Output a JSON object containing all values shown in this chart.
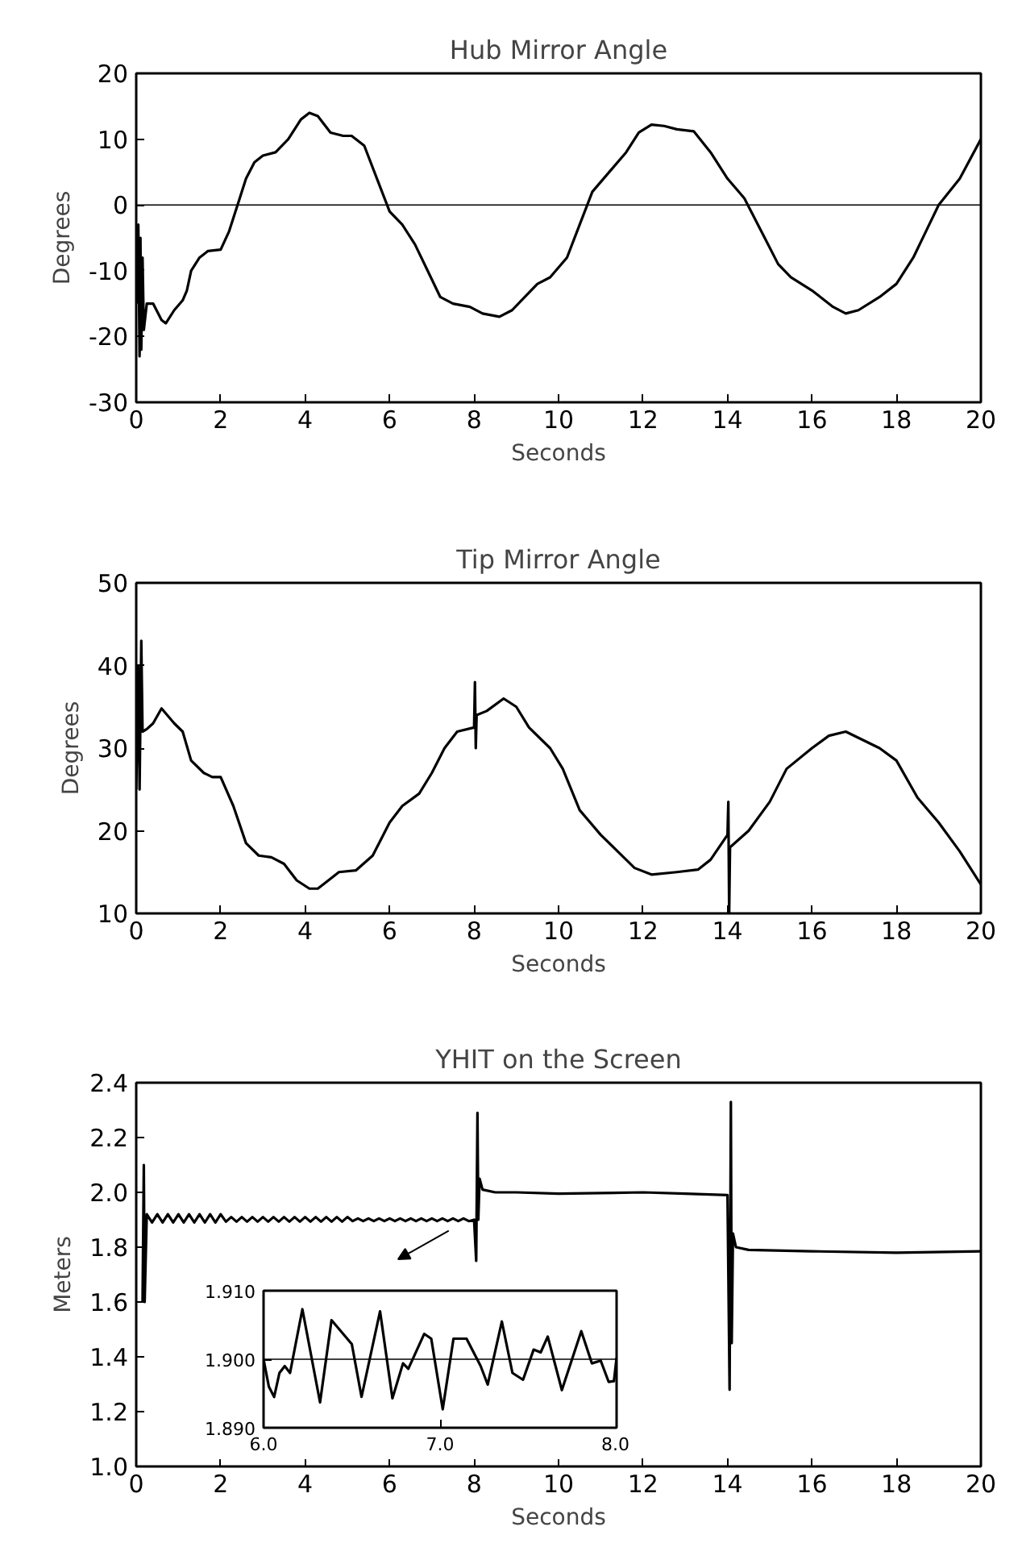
{
  "chart_data": [
    {
      "type": "line",
      "title": "Hub Mirror Angle",
      "xlabel": "Seconds",
      "ylabel": "Degrees",
      "xlim": [
        0,
        20
      ],
      "ylim": [
        -30,
        20
      ],
      "xticks": [
        0,
        2,
        4,
        6,
        8,
        10,
        12,
        14,
        16,
        18,
        20
      ],
      "yticks": [
        -30,
        -20,
        -10,
        0,
        10,
        20
      ],
      "grid": false,
      "ref_lines": [
        {
          "axis": "y",
          "value": 0,
          "color": "#000000"
        }
      ],
      "series": [
        {
          "color": "#000000",
          "x": [
            0.02,
            0.05,
            0.08,
            0.1,
            0.12,
            0.15,
            0.18,
            0.25,
            0.4,
            0.6,
            0.7,
            0.9,
            1.1,
            1.2,
            1.3,
            1.5,
            1.7,
            2.0,
            2.2,
            2.4,
            2.6,
            2.8,
            3.0,
            3.3,
            3.6,
            3.9,
            4.1,
            4.3,
            4.6,
            4.9,
            5.1,
            5.4,
            5.7,
            6.0,
            6.3,
            6.6,
            6.9,
            7.2,
            7.5,
            7.9,
            8.2,
            8.6,
            8.9,
            9.2,
            9.5,
            9.8,
            10.2,
            10.5,
            10.8,
            11.2,
            11.6,
            11.9,
            12.2,
            12.5,
            12.8,
            13.2,
            13.6,
            14.0,
            14.4,
            14.8,
            15.2,
            15.5,
            16.0,
            16.5,
            16.8,
            17.1,
            17.6,
            18.0,
            18.4,
            18.7,
            19.0,
            19.5,
            20.0
          ],
          "values": [
            -15,
            -3,
            -23,
            -5,
            -22,
            -8,
            -19,
            -15,
            -15,
            -17.5,
            -18,
            -16,
            -14.5,
            -13,
            -10,
            -8,
            -7,
            -6.8,
            -4,
            0,
            4,
            6.5,
            7.5,
            8,
            10,
            13,
            14,
            13.5,
            11,
            10.5,
            10.5,
            9,
            4,
            -1,
            -3,
            -6,
            -10,
            -14,
            -15,
            -15.5,
            -16.5,
            -17,
            -16,
            -14,
            -12,
            -11,
            -8,
            -3,
            2,
            5,
            8,
            11,
            12.2,
            12,
            11.5,
            11.2,
            8,
            4,
            1,
            -4,
            -9,
            -11,
            -13,
            -15.5,
            -16.5,
            -16,
            -14,
            -12,
            -8,
            -4,
            0,
            4,
            10
          ]
        }
      ]
    },
    {
      "type": "line",
      "title": "Tip Mirror Angle",
      "xlabel": "Seconds",
      "ylabel": "Degrees",
      "xlim": [
        0,
        20
      ],
      "ylim": [
        10,
        50
      ],
      "xticks": [
        0,
        2,
        4,
        6,
        8,
        10,
        12,
        14,
        16,
        18,
        20
      ],
      "yticks": [
        10,
        20,
        30,
        40,
        50
      ],
      "grid": false,
      "series": [
        {
          "color": "#000000",
          "x": [
            0.0,
            0.05,
            0.08,
            0.12,
            0.15,
            0.25,
            0.4,
            0.6,
            0.9,
            1.1,
            1.3,
            1.6,
            1.8,
            2.0,
            2.3,
            2.6,
            2.9,
            3.2,
            3.5,
            3.8,
            4.1,
            4.3,
            4.6,
            4.8,
            5.2,
            5.6,
            6.0,
            6.3,
            6.7,
            7.0,
            7.3,
            7.6,
            8.0,
            8.02,
            8.04,
            8.06,
            8.3,
            8.7,
            9.0,
            9.3,
            9.8,
            10.1,
            10.5,
            11.0,
            11.4,
            11.8,
            12.2,
            12.8,
            13.3,
            13.6,
            14.0,
            14.02,
            14.04,
            14.06,
            14.5,
            15.0,
            15.4,
            16.0,
            16.4,
            16.8,
            17.2,
            17.6,
            18.0,
            18.5,
            19.0,
            19.5,
            20.0
          ],
          "values": [
            25,
            40,
            25,
            43,
            32,
            32.3,
            33,
            34.8,
            33,
            32,
            28.5,
            27,
            26.5,
            26.5,
            23,
            18.5,
            17,
            16.8,
            16,
            14,
            13,
            13,
            14.2,
            15,
            15.2,
            17,
            21,
            23,
            24.5,
            27,
            30,
            32,
            32.5,
            38,
            30,
            34,
            34.5,
            36,
            35,
            32.5,
            30,
            27.5,
            22.5,
            19.5,
            17.5,
            15.5,
            14.7,
            15,
            15.3,
            16.5,
            19.5,
            23.5,
            10,
            18,
            20,
            23.5,
            27.5,
            30,
            31.5,
            32,
            31,
            30,
            28.5,
            24,
            21,
            17.5,
            13.5
          ]
        }
      ]
    },
    {
      "type": "line",
      "title": "YHIT on the Screen",
      "xlabel": "Seconds",
      "ylabel": "Meters",
      "xlim": [
        0,
        20
      ],
      "ylim": [
        1.0,
        2.4
      ],
      "xticks": [
        0,
        2,
        4,
        6,
        8,
        10,
        12,
        14,
        16,
        18,
        20
      ],
      "yticks": [
        {
          "value": 1.0,
          "label": "1.0"
        },
        {
          "value": 1.2,
          "label": "1.2"
        },
        {
          "value": 1.4,
          "label": "1.4"
        },
        {
          "value": 1.6,
          "label": "1.6"
        },
        {
          "value": 1.8,
          "label": "1.8"
        },
        {
          "value": 2.0,
          "label": "2.0"
        },
        {
          "value": 2.2,
          "label": "2.2"
        },
        {
          "value": 2.4,
          "label": "2.4"
        }
      ],
      "grid": false,
      "series": [
        {
          "color": "#000000",
          "x": [
            0.15,
            0.18,
            0.2,
            0.25,
            0.375,
            0.5,
            0.625,
            0.75,
            0.875,
            1.0,
            1.125,
            1.25,
            1.375,
            1.5,
            1.625,
            1.75,
            1.875,
            2.0,
            2.125,
            2.25,
            2.375,
            2.5,
            2.625,
            2.75,
            2.875,
            3.0,
            3.125,
            3.25,
            3.375,
            3.5,
            3.625,
            3.75,
            3.875,
            4.0,
            4.125,
            4.25,
            4.375,
            4.5,
            4.625,
            4.75,
            4.875,
            5.0,
            5.125,
            5.25,
            5.375,
            5.5,
            5.625,
            5.75,
            5.875,
            6.0,
            6.125,
            6.25,
            6.375,
            6.5,
            6.625,
            6.75,
            6.875,
            7.0,
            7.125,
            7.25,
            7.375,
            7.5,
            7.625,
            7.75,
            7.875,
            8.0,
            8.05,
            8.08,
            8.1,
            8.13,
            8.2,
            8.5,
            9.0,
            10.0,
            12.0,
            13.0,
            14.0,
            14.05,
            14.08,
            14.1,
            14.13,
            14.2,
            14.5,
            16.0,
            18.0,
            20.0
          ],
          "values": [
            1.6,
            2.1,
            1.6,
            1.92,
            1.89,
            1.92,
            1.89,
            1.92,
            1.89,
            1.92,
            1.89,
            1.92,
            1.89,
            1.92,
            1.89,
            1.92,
            1.89,
            1.92,
            1.893,
            1.91,
            1.893,
            1.91,
            1.893,
            1.91,
            1.893,
            1.91,
            1.893,
            1.91,
            1.893,
            1.91,
            1.893,
            1.91,
            1.893,
            1.91,
            1.893,
            1.91,
            1.893,
            1.91,
            1.893,
            1.91,
            1.893,
            1.91,
            1.895,
            1.905,
            1.895,
            1.905,
            1.895,
            1.905,
            1.895,
            1.905,
            1.895,
            1.905,
            1.895,
            1.905,
            1.895,
            1.905,
            1.895,
            1.905,
            1.895,
            1.905,
            1.895,
            1.905,
            1.895,
            1.905,
            1.895,
            1.9,
            1.75,
            2.29,
            1.9,
            2.05,
            2.01,
            2.0,
            2.0,
            1.995,
            2.0,
            1.995,
            1.99,
            1.28,
            2.33,
            1.45,
            1.85,
            1.8,
            1.79,
            1.785,
            1.78,
            1.785
          ]
        }
      ]
    },
    {
      "type": "line",
      "xlim": [
        6.0,
        8.0
      ],
      "ylim": [
        1.89,
        1.91
      ],
      "xticks": [
        {
          "value": 6.0,
          "label": "6.0"
        },
        {
          "value": 7.0,
          "label": "7.0"
        },
        {
          "value": 8.0,
          "label": "8.0"
        }
      ],
      "yticks": [
        {
          "value": 1.89,
          "label": "1.890"
        },
        {
          "value": 1.9,
          "label": "1.900"
        },
        {
          "value": 1.91,
          "label": "1.910"
        }
      ],
      "grid": false,
      "ref_lines": [
        {
          "axis": "y",
          "value": 1.9,
          "color": "#000000"
        }
      ],
      "series": [
        {
          "color": "#000000",
          "x": [
            6.0,
            6.03,
            6.06,
            6.09,
            6.12,
            6.15,
            6.22,
            6.32,
            6.385,
            6.5,
            6.555,
            6.66,
            6.73,
            6.79,
            6.82,
            6.91,
            6.95,
            7.015,
            7.076,
            7.15,
            7.23,
            7.27,
            7.35,
            7.41,
            7.47,
            7.53,
            7.57,
            7.61,
            7.69,
            7.8,
            7.86,
            7.91,
            7.955,
            7.985,
            8.0
          ],
          "values": [
            1.9,
            1.896,
            1.8945,
            1.898,
            1.899,
            1.898,
            1.9073,
            1.8937,
            1.9057,
            1.9022,
            1.8945,
            1.907,
            1.8943,
            1.8994,
            1.8986,
            1.9037,
            1.903,
            1.8927,
            1.903,
            1.903,
            1.899,
            1.8963,
            1.9055,
            1.898,
            1.897,
            1.9014,
            1.901,
            1.9033,
            1.8955,
            1.9041,
            1.8994,
            1.8998,
            1.8967,
            1.8968,
            1.9002
          ]
        }
      ]
    }
  ]
}
